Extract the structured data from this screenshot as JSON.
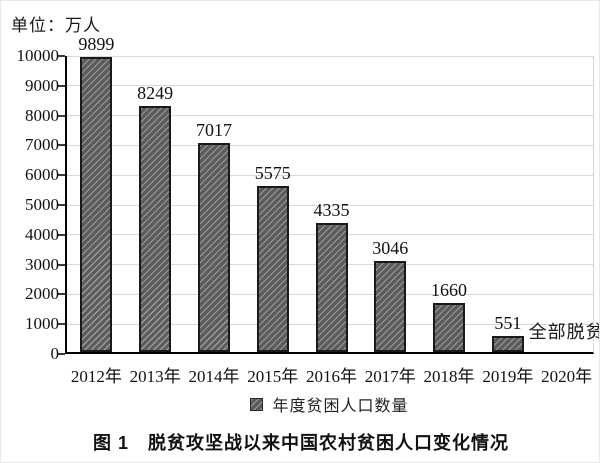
{
  "chart": {
    "unit_label": "单位：万人",
    "legend_label": "年度贫困人口数量",
    "caption": "图 1　脱贫攻坚战以来中国农村贫困人口变化情况",
    "annotation": "全部脱贫"
  },
  "chart_data": {
    "type": "bar",
    "title": "图 1　脱贫攻坚战以来中国农村贫困人口变化情况",
    "unit_label": "单位：万人",
    "ylabel": "万人",
    "categories": [
      "2012年",
      "2013年",
      "2014年",
      "2015年",
      "2016年",
      "2017年",
      "2018年",
      "2019年",
      "2020年"
    ],
    "values": [
      9899,
      8249,
      7017,
      5575,
      4335,
      3046,
      1660,
      551,
      null
    ],
    "data_labels": [
      "9899",
      "8249",
      "7017",
      "5575",
      "4335",
      "3046",
      "1660",
      "551",
      "全部脱贫"
    ],
    "annotations": [
      {
        "category": "2020年",
        "text": "全部脱贫"
      }
    ],
    "legend": [
      "年度贫困人口数量"
    ],
    "legend_position": "bottom",
    "ylim": [
      0,
      10000
    ],
    "yticks": [
      0,
      1000,
      2000,
      3000,
      4000,
      5000,
      6000,
      7000,
      8000,
      9000,
      10000
    ],
    "grid": true,
    "bar_fill_color": "#5c5c5c",
    "bar_hatch_color": "#9a9a9a",
    "bar_hatch": "diagonal",
    "bar_border_color": "#1a1a1a",
    "gridline_color": "#d9d9d9",
    "axis_color": "#000000"
  }
}
